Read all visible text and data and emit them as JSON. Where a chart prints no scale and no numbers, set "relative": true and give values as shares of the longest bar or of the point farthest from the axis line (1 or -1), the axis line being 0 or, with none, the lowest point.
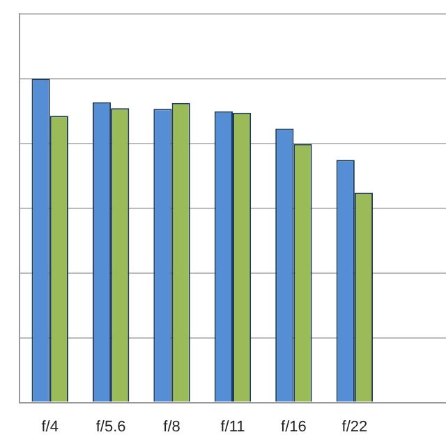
{
  "chart_data": {
    "type": "bar",
    "relative": true,
    "grid": "y",
    "categories": [
      "f/4",
      "f/5.6",
      "f/8",
      "f/11",
      "f/16",
      "f/22",
      null
    ],
    "series": [
      {
        "color": "#558ed5",
        "values": [
          1,
          0.927,
          0.907,
          0.899,
          0.846,
          0.749,
          null
        ]
      },
      {
        "color": "#9bbb59",
        "values": [
          0.885,
          0.909,
          0.925,
          0.895,
          0.798,
          0.648,
          null
        ]
      }
    ]
  }
}
